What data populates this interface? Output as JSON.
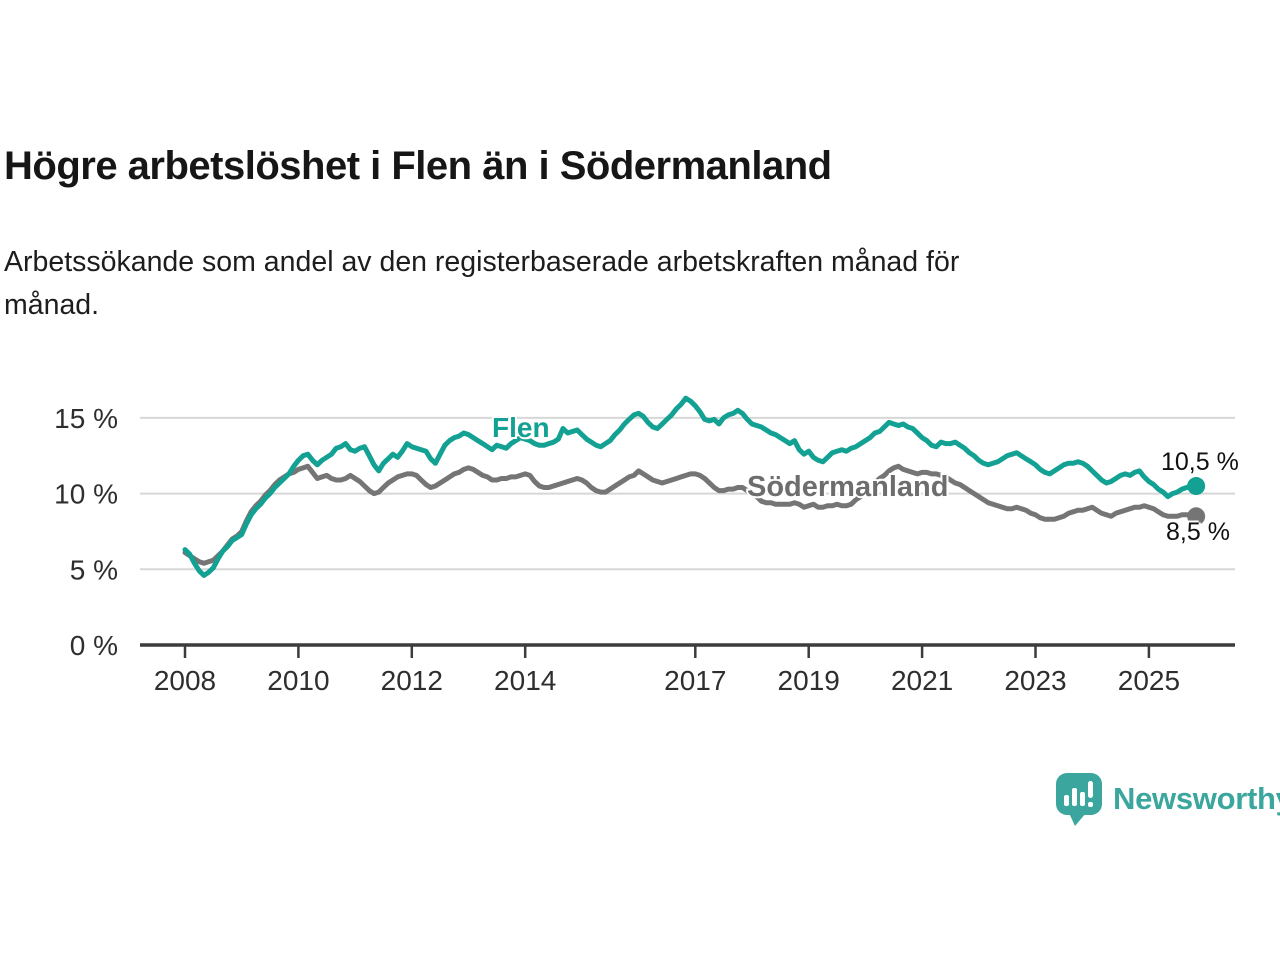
{
  "header": {
    "title": "Högre arbetslöshet i Flen än i Södermanland",
    "subtitle_line1": "Arbetssökande som andel av den registerbaserade arbetskraften månad för",
    "subtitle_line2": "månad."
  },
  "branding": {
    "logo_text": "Newsworthy",
    "logo_color": "#3ba69d",
    "logo_icon": "speech-bubble-bar-chart"
  },
  "chart_data": {
    "type": "line",
    "title": "Högre arbetslöshet i Flen än i Södermanland",
    "subtitle": "Arbetssökande som andel av den registerbaserade arbetskraften månad för månad.",
    "grid": "horizontal-only",
    "legend_position": "inline-labels-on-lines",
    "x_axis": {
      "origin": 2008,
      "unit": "year-monthly",
      "ticks": [
        {
          "value": 2008,
          "label": "2008"
        },
        {
          "value": 2010,
          "label": "2010"
        },
        {
          "value": 2012,
          "label": "2012"
        },
        {
          "value": 2014,
          "label": "2014"
        },
        {
          "value": 2017,
          "label": "2017"
        },
        {
          "value": 2019,
          "label": "2019"
        },
        {
          "value": 2021,
          "label": "2021"
        },
        {
          "value": 2023,
          "label": "2023"
        },
        {
          "value": 2025,
          "label": "2025"
        }
      ]
    },
    "y_axis": {
      "ylim": [
        0,
        16.8
      ],
      "ticks": [
        {
          "value": 0,
          "label": "0 %"
        },
        {
          "value": 5,
          "label": "5 %"
        },
        {
          "value": 10,
          "label": "10 %"
        },
        {
          "value": 15,
          "label": "15 %"
        }
      ]
    },
    "series": [
      {
        "name": "Flen",
        "color": "#12a192",
        "label_color": "#12a192",
        "end_label": "10,5 %",
        "end_value": 10.5,
        "start_year": 2008.0,
        "step_years": 0.0833333,
        "values": [
          6.3,
          6.0,
          5.4,
          4.9,
          4.6,
          4.8,
          5.1,
          5.7,
          6.2,
          6.5,
          6.9,
          7.1,
          7.3,
          8.0,
          8.6,
          9.0,
          9.3,
          9.7,
          10.0,
          10.4,
          10.7,
          11.0,
          11.3,
          11.8,
          12.2,
          12.5,
          12.6,
          12.2,
          11.9,
          12.2,
          12.4,
          12.6,
          13.0,
          13.1,
          13.3,
          12.9,
          12.8,
          13.0,
          13.1,
          12.5,
          11.9,
          11.5,
          12.0,
          12.3,
          12.6,
          12.4,
          12.8,
          13.3,
          13.1,
          13.0,
          12.9,
          12.8,
          12.3,
          12.0,
          12.6,
          13.2,
          13.5,
          13.7,
          13.8,
          14.0,
          13.9,
          13.7,
          13.5,
          13.3,
          13.1,
          12.9,
          13.2,
          13.1,
          13.0,
          13.3,
          13.5,
          13.7,
          13.6,
          13.5,
          13.3,
          13.2,
          13.2,
          13.3,
          13.4,
          13.6,
          14.3,
          14.0,
          14.1,
          14.2,
          13.9,
          13.6,
          13.4,
          13.2,
          13.1,
          13.3,
          13.5,
          13.9,
          14.2,
          14.6,
          14.9,
          15.2,
          15.3,
          15.1,
          14.7,
          14.4,
          14.3,
          14.6,
          14.9,
          15.2,
          15.6,
          15.9,
          16.3,
          16.1,
          15.8,
          15.4,
          14.9,
          14.8,
          14.9,
          14.6,
          15.0,
          15.2,
          15.3,
          15.5,
          15.3,
          14.9,
          14.6,
          14.5,
          14.4,
          14.2,
          14.0,
          13.9,
          13.7,
          13.5,
          13.3,
          13.5,
          12.9,
          12.6,
          12.8,
          12.4,
          12.2,
          12.1,
          12.4,
          12.7,
          12.8,
          12.9,
          12.8,
          13.0,
          13.1,
          13.3,
          13.5,
          13.7,
          14.0,
          14.1,
          14.4,
          14.7,
          14.6,
          14.5,
          14.6,
          14.4,
          14.3,
          14.0,
          13.7,
          13.5,
          13.2,
          13.1,
          13.4,
          13.3,
          13.3,
          13.4,
          13.2,
          13.0,
          12.7,
          12.5,
          12.2,
          12.0,
          11.9,
          12.0,
          12.1,
          12.3,
          12.5,
          12.6,
          12.7,
          12.5,
          12.3,
          12.1,
          11.9,
          11.6,
          11.4,
          11.3,
          11.5,
          11.7,
          11.9,
          12.0,
          12.0,
          12.1,
          12.0,
          11.8,
          11.5,
          11.2,
          10.9,
          10.7,
          10.8,
          11.0,
          11.2,
          11.3,
          11.2,
          11.4,
          11.5,
          11.1,
          10.8,
          10.6,
          10.3,
          10.1,
          9.8,
          10.0,
          10.1,
          10.3,
          10.4,
          10.5,
          10.5
        ]
      },
      {
        "name": "Södermanland",
        "color": "#757575",
        "label_color": "#6d6d6d",
        "end_label": "8,5 %",
        "end_value": 8.5,
        "start_year": 2008.0,
        "step_years": 0.0833333,
        "values": [
          6.1,
          5.9,
          5.7,
          5.5,
          5.4,
          5.5,
          5.6,
          5.9,
          6.2,
          6.6,
          7.0,
          7.2,
          7.5,
          8.2,
          8.8,
          9.2,
          9.5,
          9.9,
          10.2,
          10.6,
          10.9,
          11.1,
          11.3,
          11.4,
          11.6,
          11.7,
          11.8,
          11.4,
          11.0,
          11.1,
          11.2,
          11.0,
          10.9,
          10.9,
          11.0,
          11.2,
          11.0,
          10.8,
          10.5,
          10.2,
          10.0,
          10.1,
          10.4,
          10.7,
          10.9,
          11.1,
          11.2,
          11.3,
          11.3,
          11.2,
          10.9,
          10.6,
          10.4,
          10.5,
          10.7,
          10.9,
          11.1,
          11.3,
          11.4,
          11.6,
          11.7,
          11.6,
          11.4,
          11.2,
          11.1,
          10.9,
          10.9,
          11.0,
          11.0,
          11.1,
          11.1,
          11.2,
          11.3,
          11.2,
          10.8,
          10.5,
          10.4,
          10.4,
          10.5,
          10.6,
          10.7,
          10.8,
          10.9,
          11.0,
          10.9,
          10.7,
          10.4,
          10.2,
          10.1,
          10.1,
          10.3,
          10.5,
          10.7,
          10.9,
          11.1,
          11.2,
          11.5,
          11.3,
          11.1,
          10.9,
          10.8,
          10.7,
          10.8,
          10.9,
          11.0,
          11.1,
          11.2,
          11.3,
          11.3,
          11.2,
          11.0,
          10.7,
          10.4,
          10.2,
          10.2,
          10.3,
          10.3,
          10.4,
          10.4,
          10.2,
          10.0,
          9.8,
          9.5,
          9.4,
          9.4,
          9.3,
          9.3,
          9.3,
          9.3,
          9.4,
          9.3,
          9.1,
          9.2,
          9.3,
          9.1,
          9.1,
          9.2,
          9.2,
          9.3,
          9.2,
          9.2,
          9.3,
          9.6,
          9.8,
          10.1,
          10.4,
          10.7,
          11.0,
          11.2,
          11.5,
          11.7,
          11.8,
          11.6,
          11.5,
          11.4,
          11.3,
          11.4,
          11.4,
          11.3,
          11.3,
          11.2,
          11.1,
          10.9,
          10.7,
          10.6,
          10.4,
          10.2,
          10.0,
          9.8,
          9.6,
          9.4,
          9.3,
          9.2,
          9.1,
          9.0,
          9.0,
          9.1,
          9.0,
          8.9,
          8.7,
          8.6,
          8.4,
          8.3,
          8.3,
          8.3,
          8.4,
          8.5,
          8.7,
          8.8,
          8.9,
          8.9,
          9.0,
          9.1,
          8.9,
          8.7,
          8.6,
          8.5,
          8.7,
          8.8,
          8.9,
          9.0,
          9.1,
          9.1,
          9.2,
          9.1,
          9.0,
          8.8,
          8.6,
          8.5,
          8.5,
          8.5,
          8.6,
          8.6,
          8.6,
          8.5
        ]
      }
    ],
    "style": {
      "gridline_color": "#d7d7d7",
      "axis_color": "#3c3c3c",
      "tick_label_color": "#2e2e2e"
    }
  }
}
